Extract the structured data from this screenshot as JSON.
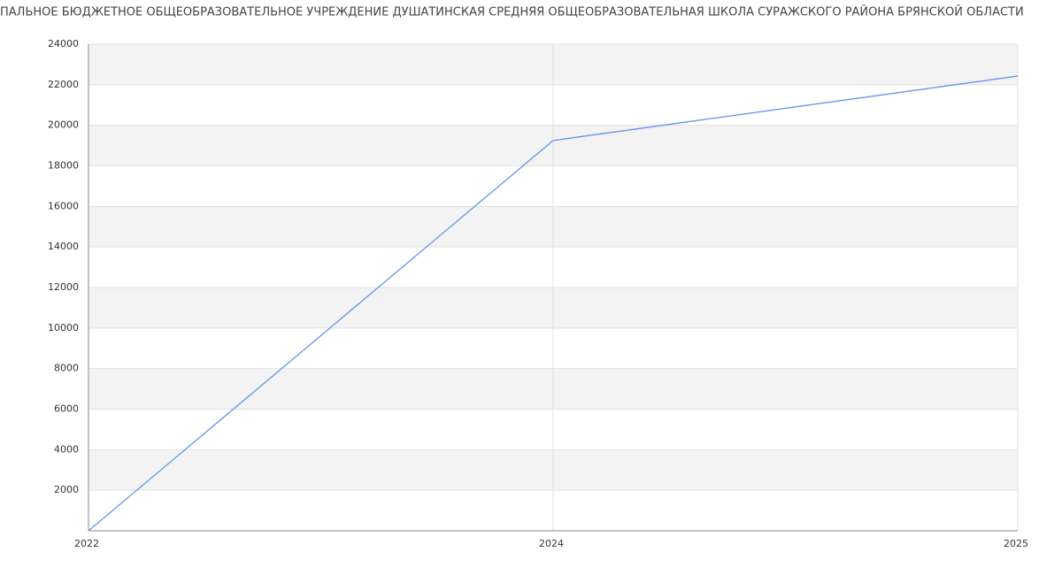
{
  "chart_data": {
    "type": "line",
    "title": "ПАЛЬНОЕ БЮДЖЕТНОЕ ОБЩЕОБРАЗОВАТЕЛЬНОЕ УЧРЕЖДЕНИЕ ДУШАТИНСКАЯ СРЕДНЯЯ ОБЩЕОБРАЗОВАТЕЛЬНАЯ ШКОЛА СУРАЖСКОГО РАЙОНА БРЯНСКОЙ ОБЛАСТИ",
    "categories": [
      "2022",
      "2024",
      "2025"
    ],
    "values": [
      0,
      19250,
      22430
    ],
    "color": "#6495ed",
    "ylim": [
      0,
      24000
    ],
    "yticks": [
      2000,
      4000,
      6000,
      8000,
      10000,
      12000,
      14000,
      16000,
      18000,
      20000,
      22000,
      24000
    ],
    "grid": true
  }
}
